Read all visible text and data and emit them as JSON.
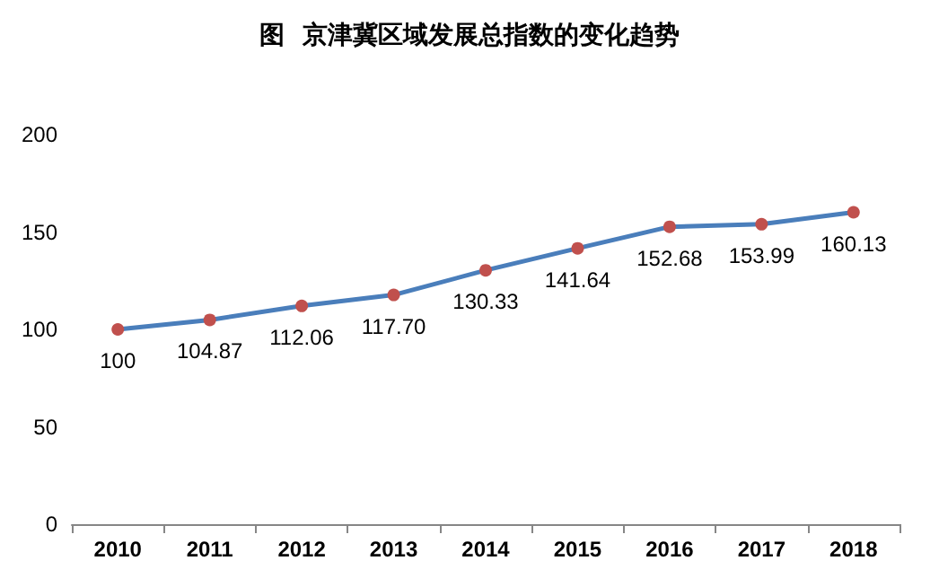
{
  "chart_data": {
    "type": "line",
    "title": "图  京津冀区域发展总指数的变化趋势",
    "categories": [
      "2010",
      "2011",
      "2012",
      "2013",
      "2014",
      "2015",
      "2016",
      "2017",
      "2018"
    ],
    "series": [
      {
        "color": "#4a7ebb",
        "values": [
          100,
          104.87,
          112.06,
          117.7,
          130.33,
          141.64,
          152.68,
          153.99,
          160.13
        ],
        "value_labels": [
          "100",
          "104.87",
          "112.06",
          "117.70",
          "130.33",
          "141.64",
          "152.68",
          "153.99",
          "160.13"
        ]
      }
    ],
    "ylim": [
      0,
      200
    ],
    "yticks": [
      0,
      50,
      100,
      150,
      200
    ],
    "marker": "circle",
    "line_style": "solid"
  }
}
